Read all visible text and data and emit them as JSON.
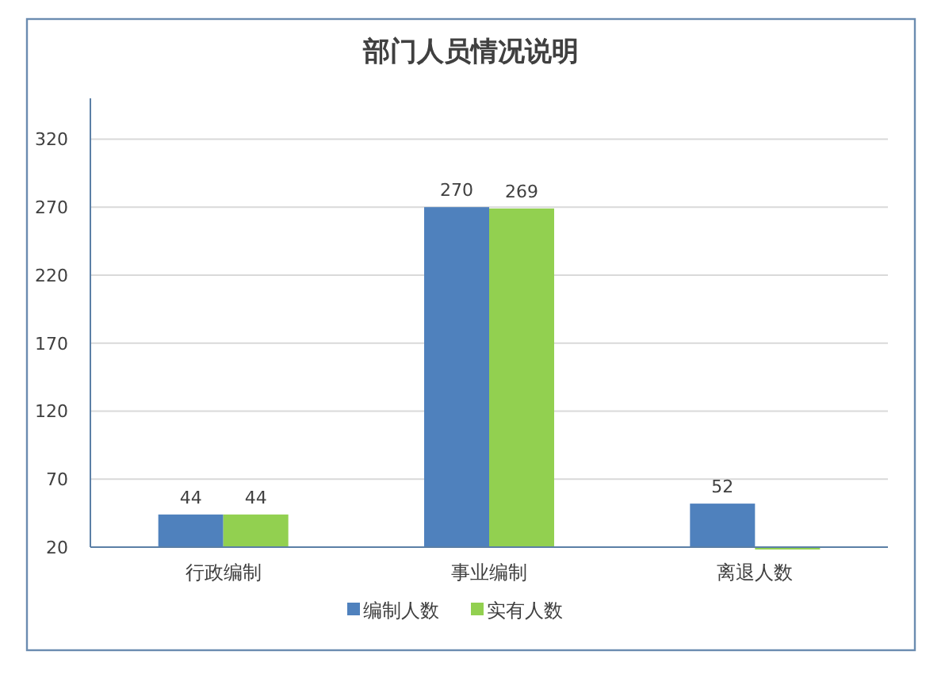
{
  "chart_data": {
    "type": "bar",
    "title": "部门人员情况说明",
    "categories": [
      "行政编制",
      "事业编制",
      "离退人数"
    ],
    "series": [
      {
        "name": "编制人数",
        "color": "#4f81bd",
        "values": [
          44,
          270,
          52
        ],
        "value_labels": [
          "44",
          "270",
          "52"
        ]
      },
      {
        "name": "实有人数",
        "color": "#92d050",
        "values": [
          44,
          269,
          20
        ],
        "value_labels": [
          "44",
          "269",
          null
        ]
      }
    ],
    "ylim": [
      20,
      350
    ],
    "yticks": [
      20,
      70,
      120,
      170,
      220,
      270,
      320
    ],
    "grid": "y",
    "legend": "bottom"
  }
}
